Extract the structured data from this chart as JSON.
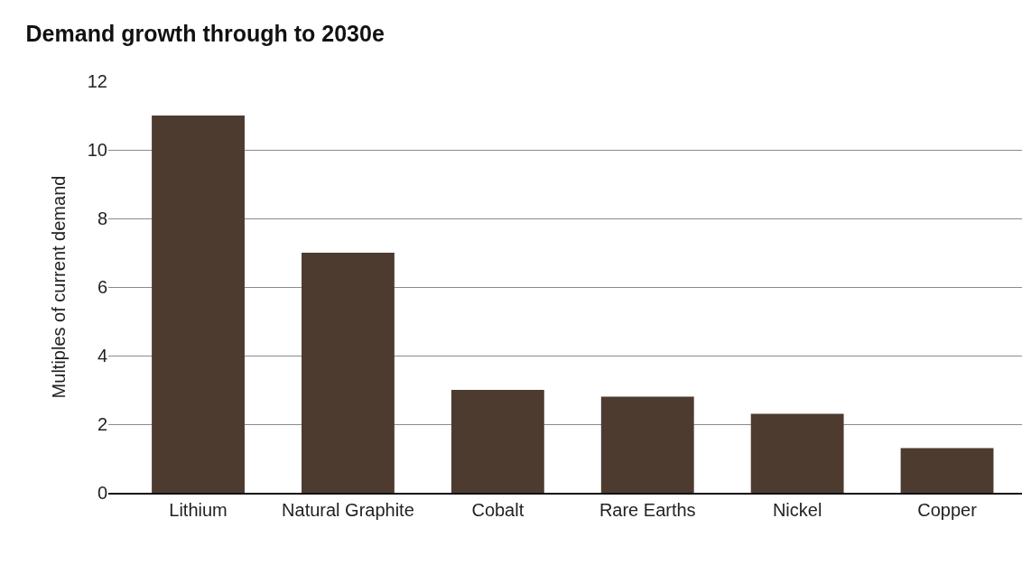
{
  "chart_data": {
    "type": "bar",
    "title": "Demand growth through to 2030e",
    "ylabel": "Multiples of current demand",
    "categories": [
      "Lithium",
      "Natural Graphite",
      "Cobalt",
      "Rare Earths",
      "Nickel",
      "Copper"
    ],
    "values": [
      11,
      7,
      3,
      2.8,
      2.3,
      1.3
    ],
    "color": "#4e3b30",
    "ylim": [
      0,
      12
    ],
    "yticks": [
      0,
      2,
      4,
      6,
      8,
      10,
      12
    ],
    "grid": "y"
  }
}
